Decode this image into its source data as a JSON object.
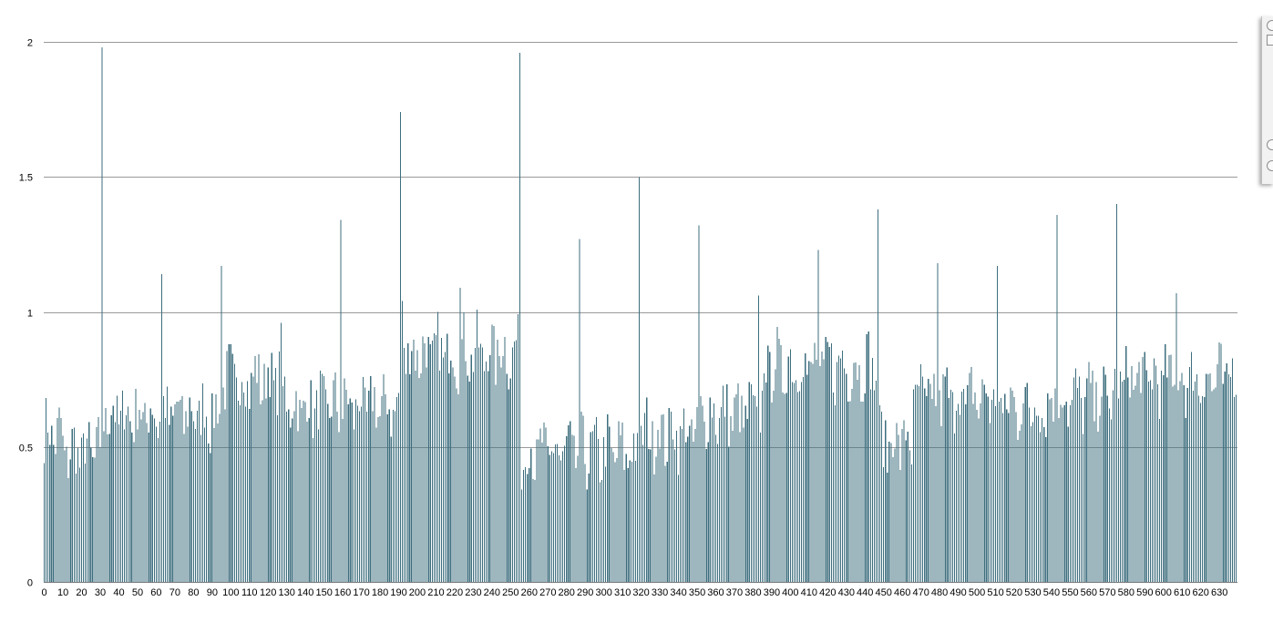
{
  "chart_data": {
    "type": "bar",
    "title": "",
    "xlabel": "",
    "ylabel": "",
    "xlim": [
      0,
      639
    ],
    "ylim": [
      0,
      2
    ],
    "y_ticks": [
      "0",
      "0.5",
      "1",
      "1.5",
      "2"
    ],
    "x_ticks": [
      "0",
      "10",
      "20",
      "30",
      "40",
      "50",
      "60",
      "70",
      "80",
      "90",
      "100",
      "110",
      "120",
      "130",
      "140",
      "150",
      "160",
      "170",
      "180",
      "190",
      "200",
      "210",
      "220",
      "230",
      "240",
      "250",
      "260",
      "270",
      "280",
      "290",
      "300",
      "310",
      "320",
      "330",
      "340",
      "350",
      "360",
      "370",
      "380",
      "390",
      "400",
      "410",
      "420",
      "430",
      "440",
      "450",
      "460",
      "470",
      "480",
      "490",
      "500",
      "510",
      "520",
      "530",
      "540",
      "550",
      "560",
      "570",
      "580",
      "590",
      "600",
      "610",
      "620",
      "630"
    ],
    "grid": true,
    "series_color": "#3d6e7e",
    "segments": [
      {
        "from": 0,
        "to": 9,
        "level": 0.55
      },
      {
        "from": 10,
        "to": 30,
        "level": 0.48
      },
      {
        "from": 31,
        "to": 94,
        "level": 0.62
      },
      {
        "from": 95,
        "to": 128,
        "level": 0.75
      },
      {
        "from": 129,
        "to": 190,
        "level": 0.65
      },
      {
        "from": 191,
        "to": 255,
        "level": 0.85
      },
      {
        "from": 256,
        "to": 319,
        "level": 0.48
      },
      {
        "from": 320,
        "to": 350,
        "level": 0.55
      },
      {
        "from": 351,
        "to": 385,
        "level": 0.62
      },
      {
        "from": 386,
        "to": 447,
        "level": 0.8
      },
      {
        "from": 448,
        "to": 465,
        "level": 0.52
      },
      {
        "from": 466,
        "to": 512,
        "level": 0.68
      },
      {
        "from": 513,
        "to": 540,
        "level": 0.65
      },
      {
        "from": 541,
        "to": 575,
        "level": 0.68
      },
      {
        "from": 576,
        "to": 639,
        "level": 0.75
      }
    ],
    "peaks": [
      {
        "x": 31,
        "y": 1.98
      },
      {
        "x": 63,
        "y": 1.14
      },
      {
        "x": 95,
        "y": 1.17
      },
      {
        "x": 127,
        "y": 0.96
      },
      {
        "x": 159,
        "y": 1.34
      },
      {
        "x": 191,
        "y": 1.74
      },
      {
        "x": 192,
        "y": 1.04
      },
      {
        "x": 223,
        "y": 1.09
      },
      {
        "x": 255,
        "y": 1.96
      },
      {
        "x": 287,
        "y": 1.27
      },
      {
        "x": 319,
        "y": 1.5
      },
      {
        "x": 351,
        "y": 1.32
      },
      {
        "x": 383,
        "y": 1.06
      },
      {
        "x": 415,
        "y": 1.23
      },
      {
        "x": 447,
        "y": 1.38
      },
      {
        "x": 479,
        "y": 1.18
      },
      {
        "x": 511,
        "y": 1.17
      },
      {
        "x": 543,
        "y": 1.36
      },
      {
        "x": 575,
        "y": 1.4
      },
      {
        "x": 607,
        "y": 1.07
      }
    ]
  }
}
